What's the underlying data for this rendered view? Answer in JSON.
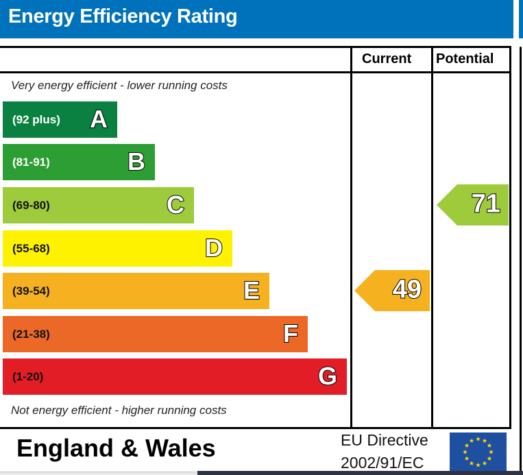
{
  "header": {
    "title": "Energy Efficiency Rating",
    "color": "#0072bb"
  },
  "columns": {
    "current": "Current",
    "potential": "Potential"
  },
  "notes": {
    "top": "Very energy efficient - lower running costs",
    "bottom": "Not energy efficient - higher running costs"
  },
  "chart_data": {
    "type": "bar",
    "title": "Energy Efficiency Rating",
    "categories": [
      "A",
      "B",
      "C",
      "D",
      "E",
      "F",
      "G"
    ],
    "bands": [
      {
        "letter": "A",
        "range": "(92 plus)",
        "color": "#0a8141",
        "text_color": "#ffffff"
      },
      {
        "letter": "B",
        "range": "(81-91)",
        "color": "#2d9e34",
        "text_color": "#ffffff"
      },
      {
        "letter": "C",
        "range": "(69-80)",
        "color": "#9dcb3c",
        "text_color": "#111111"
      },
      {
        "letter": "D",
        "range": "(55-68)",
        "color": "#fff200",
        "text_color": "#111111"
      },
      {
        "letter": "E",
        "range": "(39-54)",
        "color": "#f6b120",
        "text_color": "#111111"
      },
      {
        "letter": "F",
        "range": "(21-38)",
        "color": "#ec6827",
        "text_color": "#111111"
      },
      {
        "letter": "G",
        "range": "(1-20)",
        "color": "#e31d25",
        "text_color": "#111111"
      }
    ],
    "current": {
      "value": 49,
      "band": "E",
      "color": "#f6b120"
    },
    "potential": {
      "value": 71,
      "band": "C",
      "color": "#9dcb3c"
    }
  },
  "footer": {
    "country": "England & Wales",
    "directive_line1": "EU Directive",
    "directive_line2": "2002/91/EC",
    "flag_icon": "eu-flag-icon"
  }
}
